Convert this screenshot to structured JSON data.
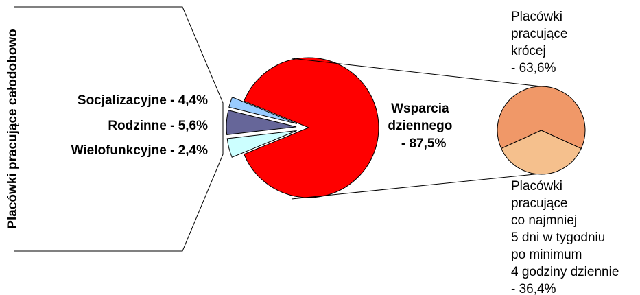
{
  "chart_data": {
    "type": "pie",
    "main": {
      "slices": [
        {
          "label": "Wsparcia dziennego",
          "value": 87.5,
          "color": "#ff0000"
        },
        {
          "label": "Socjalizacyjne",
          "value": 4.4,
          "color": "#ccffff"
        },
        {
          "label": "Rodzinne",
          "value": 5.6,
          "color": "#666699"
        },
        {
          "label": "Wielofunkcyjne",
          "value": 2.4,
          "color": "#99ccff"
        }
      ]
    },
    "group_label": "Placówki pracujące całodobowo",
    "side_labels": [
      {
        "text": "Socjalizacyjne - 4,4%"
      },
      {
        "text": "Rodzinne - 5,6%"
      },
      {
        "text": "Wielofunkcyjne - 2,4%"
      }
    ],
    "main_label_lines": [
      "Wsparcia",
      "dziennego",
      " - 87,5%"
    ],
    "breakdown": {
      "slices": [
        {
          "label": "Placówki pracujące krócej",
          "value": 63.6,
          "color": "#f09868"
        },
        {
          "label": "Placówki pracujące co najmniej 5 dni w tygodniu po minimum 4 godziny dziennie",
          "value": 36.4,
          "color": "#f5c08d"
        }
      ],
      "label_top_lines": [
        "Placówki",
        "pracujące",
        "krócej",
        "- 63,6%"
      ],
      "label_bottom_lines": [
        "Placówki",
        "pracujące",
        "co najmniej",
        "5 dni w tygodniu",
        "po minimum",
        "4 godziny dziennie",
        "- 36,4%"
      ]
    }
  }
}
